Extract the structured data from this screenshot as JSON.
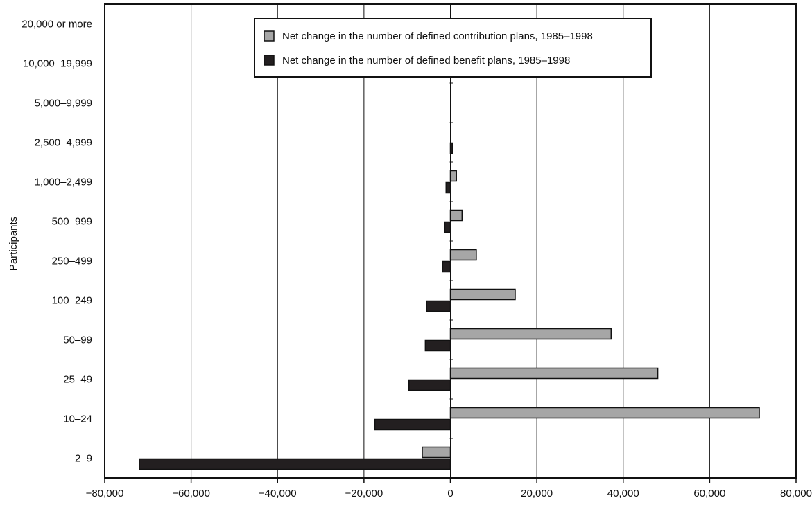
{
  "chart_data": {
    "type": "bar",
    "orientation": "horizontal",
    "title": "",
    "xlabel": "",
    "ylabel": "Participants",
    "xlim": [
      -80000,
      80000
    ],
    "x_ticks": [
      -80000,
      -60000,
      -40000,
      -20000,
      0,
      20000,
      40000,
      60000,
      80000
    ],
    "x_tick_labels": [
      "−80,000",
      "−60,000",
      "−40,000",
      "−20,000",
      "0",
      "20,000",
      "40,000",
      "60,000",
      "80,000"
    ],
    "grid": "vertical",
    "legend_position": "top-center",
    "categories": [
      "20,000 or more",
      "10,000–19,999",
      "5,000–9,999",
      "2,500–4,999",
      "1,000–2,499",
      "500–999",
      "250–499",
      "100–249",
      "50–99",
      "25–49",
      "10–24",
      "2–9"
    ],
    "series": [
      {
        "name": "Net change in the number of defined contribution plans, 1985–1998",
        "color": "#a6a6a6",
        "values": [
          0,
          0,
          0,
          0,
          1400,
          2700,
          6000,
          15000,
          37200,
          48000,
          71500,
          -6500
        ]
      },
      {
        "name": "Net change in the number of defined benefit plans, 1985–1998",
        "color": "#231f20",
        "values": [
          0,
          0,
          0,
          500,
          -1000,
          -1300,
          -1800,
          -5500,
          -5800,
          -9600,
          -17500,
          -72000
        ]
      }
    ]
  }
}
